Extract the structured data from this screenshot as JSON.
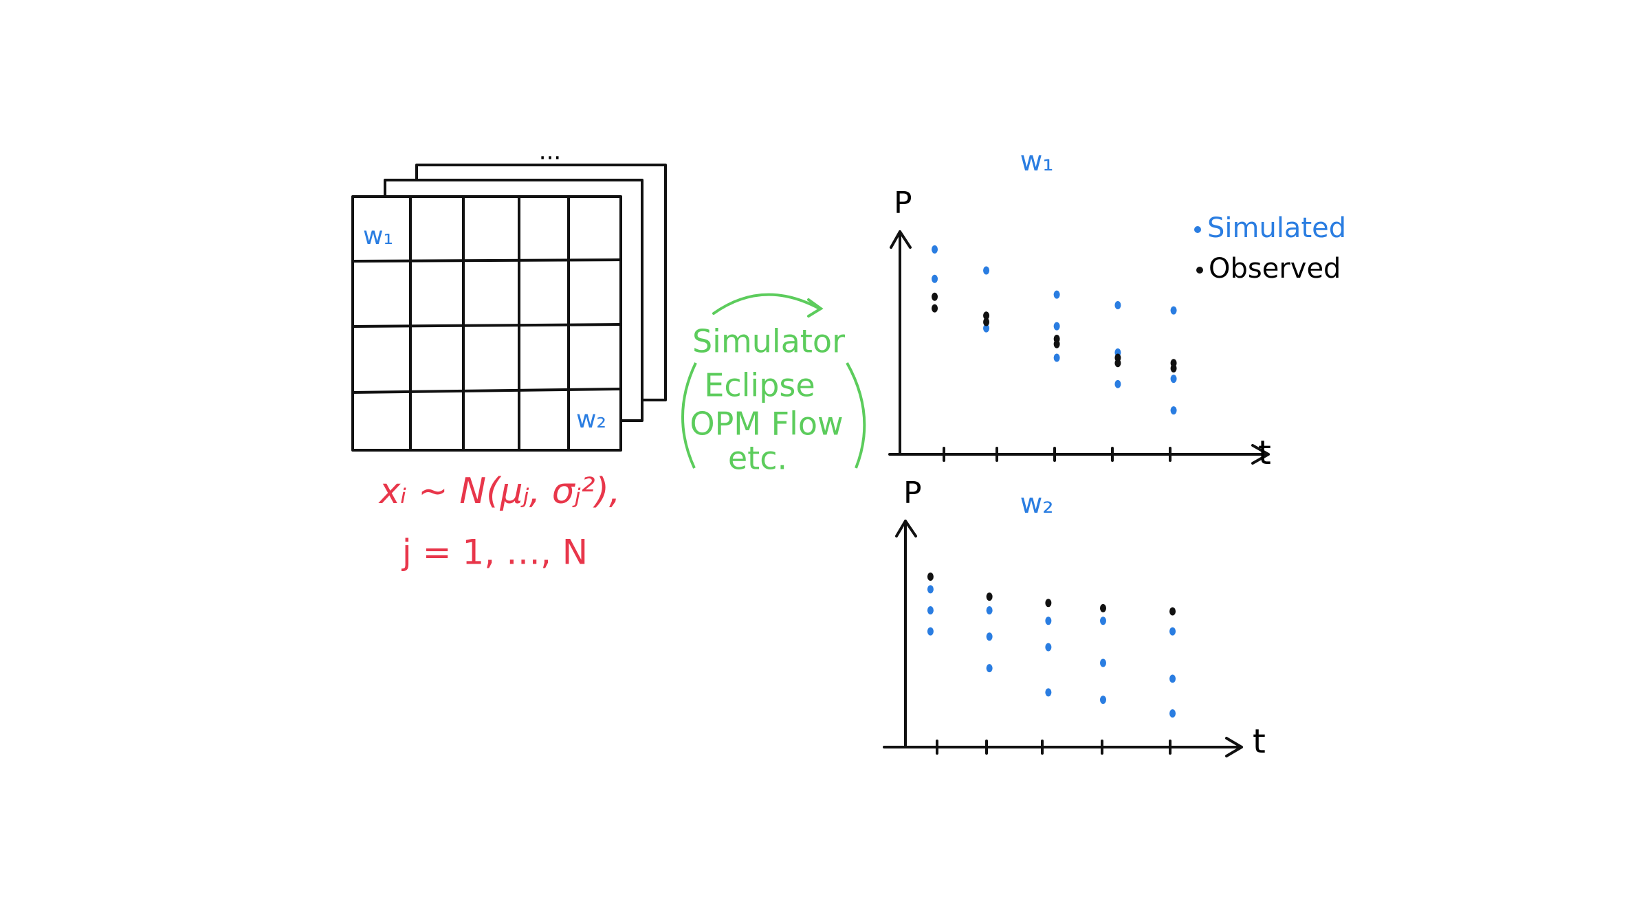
{
  "grid_figure": {
    "top_label": "...",
    "labels": [
      "w₁",
      "w₂"
    ],
    "formula": "xᵢ ~ N(μⱼ, σⱼ²),",
    "index_range": "j = 1, …, N"
  },
  "simulator": {
    "title": "Simulator",
    "examples": [
      "Eclipse",
      "OPM Flow",
      "etc."
    ]
  },
  "plots": [
    {
      "title": "w₁",
      "y_label": "P",
      "x_label": "t"
    },
    {
      "title": "w₂",
      "y_label": "P",
      "x_label": "t"
    }
  ],
  "legend": [
    "Simulated",
    "Observed"
  ]
}
